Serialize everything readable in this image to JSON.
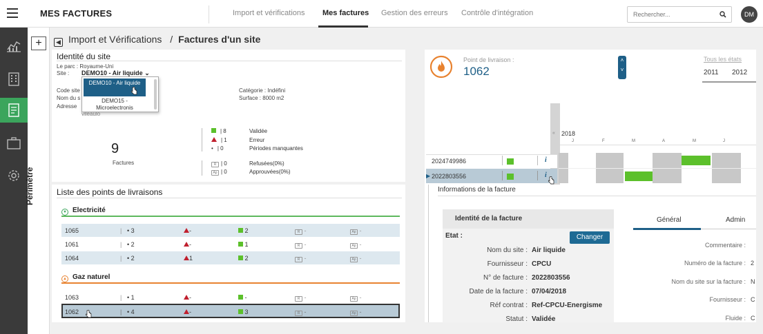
{
  "header": {
    "app_title": "MES FACTURES",
    "tabs": [
      {
        "label": "Import et vérifications"
      },
      {
        "label": "Mes factures"
      },
      {
        "label": "Gestion des erreurs"
      },
      {
        "label": "Contrôle d'intégration"
      }
    ],
    "search_placeholder": "Rechercher...",
    "avatar_initials": "DM"
  },
  "perimetre": {
    "plus": "+",
    "label": "Périmètre"
  },
  "breadcrumb": {
    "parent": "Import et Vérifications",
    "separator": "/",
    "current": "Factures d'un site"
  },
  "site_identity": {
    "title": "Identité du site",
    "parc": "Le parc : Royaume-Uni",
    "site_label": "Site :",
    "site_value": "DEMO10 - Air liquide",
    "code_site_label": "Code site",
    "nom_label": "Nom du s",
    "adresse_label": "Adresse",
    "adresse_fragment": "vileaulo",
    "categorie": "Catégorie : Indéfini",
    "surface": "Surface : 8000 m2",
    "dropdown_options": [
      {
        "label": "DEMO10 - Air liquide"
      },
      {
        "label": "DEMO15 - Microelectronis"
      }
    ],
    "invoices_count": "9",
    "invoices_label": "Factures",
    "legend": [
      {
        "count": "| 8",
        "label": "Validée"
      },
      {
        "count": "| 1",
        "label": "Erreur"
      },
      {
        "count": "| 0",
        "label": "Périodes manquantes"
      },
      {
        "count": "| 0",
        "label": "Refusées(0%)",
        "icon_text": "R"
      },
      {
        "count": "| 0",
        "label": "Approuvées(0%)",
        "icon_text": "Ap"
      }
    ]
  },
  "delivery_points": {
    "title": "Liste des points de livraisons",
    "groups": [
      {
        "name": "Electricité",
        "rows": [
          {
            "id": "1065",
            "dots": "• 3",
            "err": "-",
            "ok": "2",
            "r": "-",
            "ap": "-"
          },
          {
            "id": "1061",
            "dots": "• 2",
            "err": "-",
            "ok": "1",
            "r": "-",
            "ap": "-"
          },
          {
            "id": "1064",
            "dots": "• 2",
            "err": "1",
            "ok": "2",
            "r": "-",
            "ap": "-"
          }
        ]
      },
      {
        "name": "Gaz naturel",
        "rows": [
          {
            "id": "1063",
            "dots": "• 1",
            "err": "-",
            "ok": "-",
            "r": "-",
            "ap": "-"
          },
          {
            "id": "1062",
            "dots": "• 4",
            "err": "-",
            "ok": "3",
            "r": "-",
            "ap": "-"
          }
        ]
      }
    ],
    "icon_r": "R",
    "icon_ap": "Ap"
  },
  "livraison": {
    "label": "Point de livraison :",
    "value": "1062",
    "all_states": "Tous les états",
    "years": [
      "2011",
      "2012"
    ],
    "timeline_year": "2018",
    "months": [
      "J",
      "F",
      "M",
      "A",
      "M",
      "J"
    ],
    "invoices": [
      {
        "number": "2024749986"
      },
      {
        "number": "2022803556"
      }
    ]
  },
  "invoice_info": {
    "title": "Informations de la facture",
    "identity_title": "Identité de la facture",
    "etat_label": "Etat :",
    "change_button": "Changer",
    "fields": [
      {
        "label": "Nom du site :",
        "value": "Air liquide"
      },
      {
        "label": "Fournisseur :",
        "value": "CPCU"
      },
      {
        "label": "N° de facture :",
        "value": "2022803556"
      },
      {
        "label": "Date de la facture :",
        "value": "07/04/2018"
      },
      {
        "label": "Réf contrat :",
        "value": "Ref-CPCU-Energisme"
      },
      {
        "label": "Statut :",
        "value": "Validée"
      }
    ],
    "tabs": [
      {
        "label": "Général"
      },
      {
        "label": "Admin"
      }
    ],
    "right_fields": [
      {
        "label": "Commentaire :"
      },
      {
        "label": "Numéro de la facture :",
        "value": "2"
      },
      {
        "label": "Nom du site sur la facture :",
        "value": "N"
      },
      {
        "label": "Fournisseur :",
        "value": "C"
      },
      {
        "label": "Fluide :",
        "value": "C"
      }
    ]
  }
}
